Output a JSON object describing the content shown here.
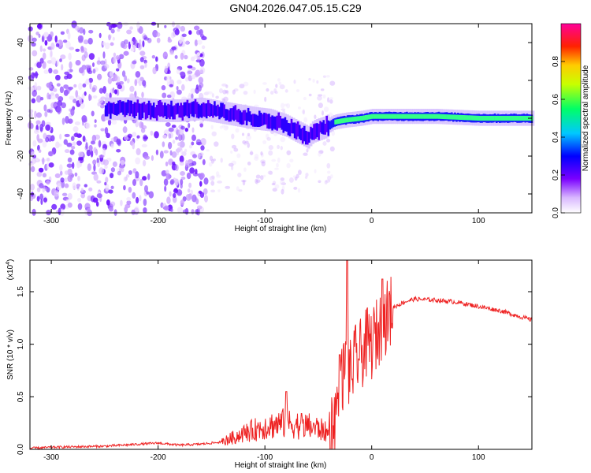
{
  "title": "GN04.2026.047.05.15.C29",
  "spectrogram": {
    "xlabel": "Height of straight line (km)",
    "ylabel": "Frequency (Hz)",
    "xlim": [
      -320,
      150
    ],
    "ylim": [
      -50,
      50
    ],
    "xticks": [
      -300,
      -200,
      -100,
      0,
      100
    ],
    "yticks": [
      -40,
      -20,
      0,
      20,
      40
    ],
    "ridge": [
      [
        -250,
        5
      ],
      [
        -220,
        5
      ],
      [
        -200,
        4
      ],
      [
        -180,
        4
      ],
      [
        -160,
        5
      ],
      [
        -150,
        4
      ],
      [
        -130,
        2
      ],
      [
        -110,
        0
      ],
      [
        -95,
        -1
      ],
      [
        -80,
        -4
      ],
      [
        -70,
        -7
      ],
      [
        -60,
        -10
      ],
      [
        -55,
        -7
      ],
      [
        -45,
        -5
      ],
      [
        -35,
        -2
      ],
      [
        -25,
        -1
      ],
      [
        -10,
        0
      ],
      [
        0,
        1
      ],
      [
        20,
        1
      ],
      [
        60,
        1
      ],
      [
        100,
        0
      ],
      [
        150,
        0
      ]
    ]
  },
  "colorbar": {
    "label": "Normalized spectral amplitude",
    "ticks": [
      "0.0",
      "0.2",
      "0.4",
      "0.6",
      "0.8"
    ],
    "tick_values": [
      0.0,
      0.2,
      0.4,
      0.6,
      0.8
    ]
  },
  "chart_data": {
    "type": "line",
    "title": "GN04.2026.047.05.15.C29",
    "xlabel": "Height of straight line (km)",
    "ylabel": "SNR (10 * v/v)",
    "exponent_label": "(x10",
    "exponent_power": "4",
    "exponent_close": ")",
    "xlim": [
      -320,
      150
    ],
    "ylim": [
      0,
      1.8
    ],
    "xticks": [
      -300,
      -200,
      -100,
      0,
      100
    ],
    "yticks": [
      "0.0",
      "0.5",
      "1.0",
      "1.5"
    ],
    "ytick_values": [
      0.0,
      0.5,
      1.0,
      1.5
    ],
    "series": [
      {
        "name": "SNR",
        "color": "#ee2222",
        "x": [
          -320,
          -300,
          -250,
          -200,
          -180,
          -160,
          -140,
          -120,
          -100,
          -80,
          -60,
          -50,
          -40,
          -35,
          -30,
          -25,
          -20,
          -15,
          -10,
          -5,
          0,
          5,
          10,
          20,
          30,
          40,
          60,
          80,
          100,
          120,
          150
        ],
        "y": [
          0.01,
          0.02,
          0.03,
          0.06,
          0.04,
          0.05,
          0.07,
          0.15,
          0.22,
          0.25,
          0.22,
          0.2,
          0.15,
          0.3,
          0.55,
          0.8,
          0.7,
          0.85,
          0.9,
          1.0,
          1.0,
          1.1,
          1.2,
          1.35,
          1.4,
          1.43,
          1.42,
          1.4,
          1.36,
          1.32,
          1.23
        ]
      }
    ],
    "peaks": [
      [
        -23,
        1.8
      ],
      [
        -30,
        0.9
      ],
      [
        10,
        1.62
      ],
      [
        -80,
        0.55
      ]
    ]
  }
}
